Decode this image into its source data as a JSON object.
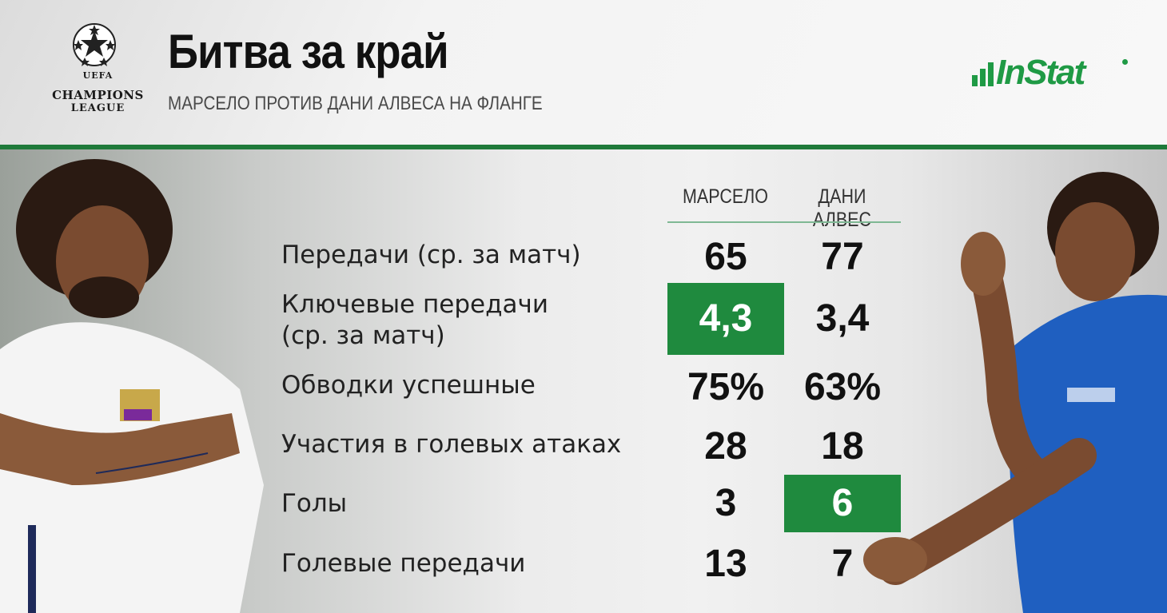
{
  "header": {
    "title": "Битва за край",
    "subtitle": "МАРСЕЛО ПРОТИВ ДАНИ АЛВЕСА НА ФЛАНГЕ",
    "logo_left": {
      "line1": "UEFA",
      "line2": "CHAMPIONS",
      "line3": "LEAGUE"
    },
    "logo_right": "InStat"
  },
  "table": {
    "columns": [
      "МАРСЕЛО",
      "ДАНИ АЛВЕС"
    ],
    "rows": [
      {
        "label": "Передачи (ср. за матч)",
        "values": [
          "65",
          "77"
        ],
        "highlight": null
      },
      {
        "label": "Ключевые передачи\n(ср. за матч)",
        "values": [
          "4,3",
          "3,4"
        ],
        "highlight": 0
      },
      {
        "label": "Обводки успешные",
        "values": [
          "75%",
          "63%"
        ],
        "highlight": null
      },
      {
        "label": "Участия в голевых атаках",
        "values": [
          "28",
          "18"
        ],
        "highlight": null
      },
      {
        "label": "Голы",
        "values": [
          "3",
          "6"
        ],
        "highlight": 1
      },
      {
        "label": "Голевые передачи",
        "values": [
          "13",
          "7"
        ],
        "highlight": null
      }
    ]
  },
  "colors": {
    "accent": "#1f8a3e",
    "brand": "#1f9a45"
  }
}
